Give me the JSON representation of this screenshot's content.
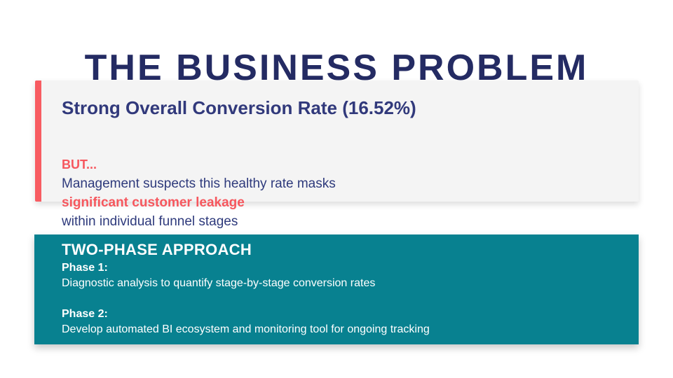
{
  "slide": {
    "title": "THE BUSINESS PROBLEM"
  },
  "problem_card": {
    "heading": "Strong Overall Conversion Rate (16.52%)",
    "but_label": "BUT...",
    "line1": "Management suspects this healthy rate masks",
    "highlight": "significant customer leakage",
    "line2": "within individual funnel stages"
  },
  "approach_card": {
    "heading": "TWO-PHASE APPROACH",
    "phase1_label": "Phase 1:",
    "phase1_text": "Diagnostic analysis to quantify stage-by-stage conversion rates",
    "phase2_label": "Phase 2:",
    "phase2_text": "Develop automated BI ecosystem and monitoring tool for ongoing tracking"
  },
  "colors": {
    "title-navy": "#242B63",
    "heading-navy": "#31397B",
    "body-navy": "#2E3A7C",
    "coral": "#F6575E",
    "coral-bar": "#F85C62",
    "teal": "#088190",
    "card-gray": "#F4F4F4"
  }
}
